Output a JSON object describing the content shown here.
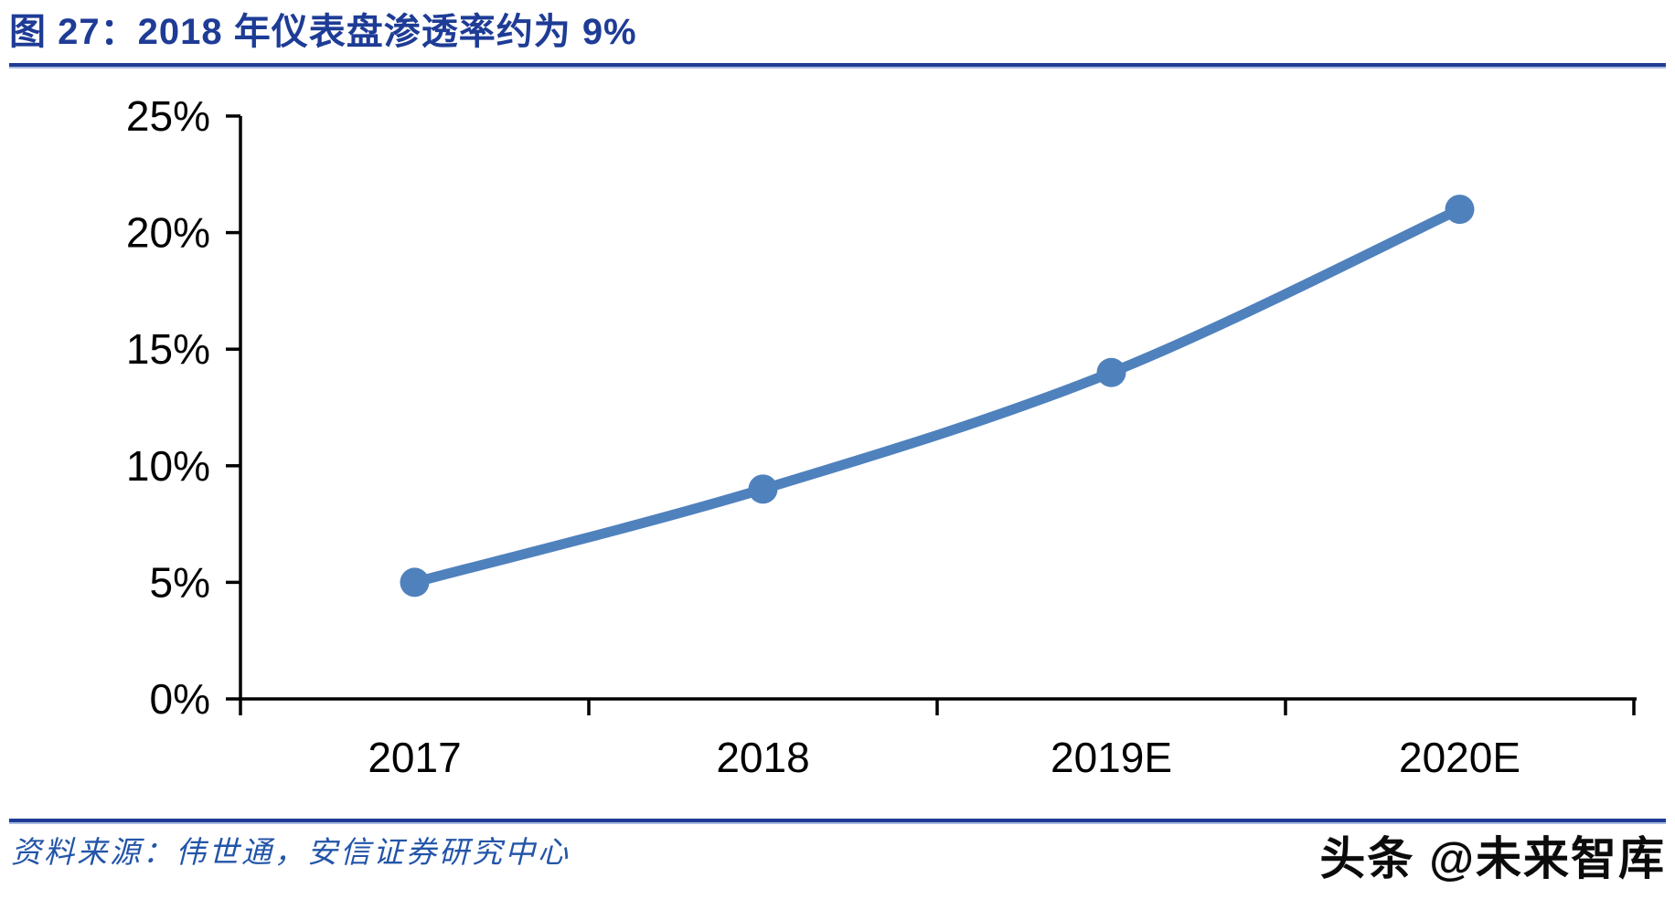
{
  "figure": {
    "title": "图 27：2018 年仪表盘渗透率约为 9%",
    "source_label": "资料来源：伟世通，安信证券研究中心",
    "watermark": "头条 @未来智库"
  },
  "chart_data": {
    "type": "line",
    "title": "2018 年仪表盘渗透率约为 9%",
    "categories": [
      "2017",
      "2018",
      "2019E",
      "2020E"
    ],
    "values": [
      5,
      9,
      14,
      21
    ],
    "xlabel": "",
    "ylabel": "",
    "ylim": [
      0,
      25
    ],
    "y_tick_step": 5,
    "y_tick_labels": [
      "0%",
      "5%",
      "10%",
      "15%",
      "20%",
      "25%"
    ],
    "grid": false,
    "legend_position": "none",
    "smooth": true,
    "marker": "circle"
  },
  "colors": {
    "title_blue": "#1e3c96",
    "divider_light_blue": "#a9bbe0",
    "line_blue": "#4F81BD",
    "source_text_blue": "#2355a8",
    "axis_black": "#000000",
    "watermark_black": "#0b0b0b"
  }
}
